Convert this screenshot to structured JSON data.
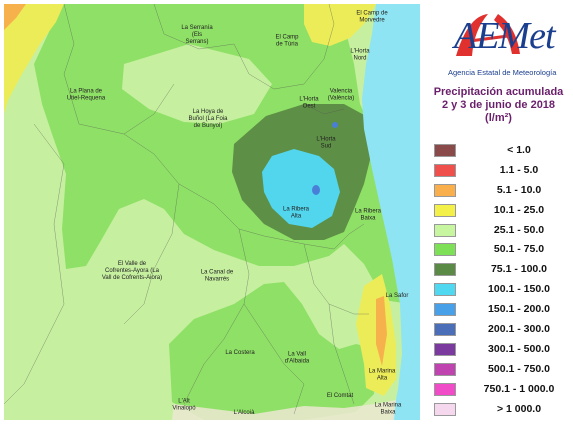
{
  "logo": {
    "brand": "AEMet",
    "agency": "Agencia Estatal de Meteorología"
  },
  "title": {
    "line1": "Precipitación acumulada",
    "line2": "2 y 3 de junio de 2018",
    "unit": "(l/m²)"
  },
  "legend": [
    {
      "label": "< 1.0",
      "color": "#8b4a4a"
    },
    {
      "label": "1.1 - 5.0",
      "color": "#f0504b"
    },
    {
      "label": "5.1 - 10.0",
      "color": "#f9b04c"
    },
    {
      "label": "10.1 - 25.0",
      "color": "#f4f04a"
    },
    {
      "label": "25.1 - 50.0",
      "color": "#c8f5a0"
    },
    {
      "label": "50.1 - 75.0",
      "color": "#7ee056"
    },
    {
      "label": "75.1 - 100.0",
      "color": "#5a8a46"
    },
    {
      "label": "100.1 - 150.0",
      "color": "#4fd8f0"
    },
    {
      "label": "150.1 - 200.0",
      "color": "#47a0e8"
    },
    {
      "label": "200.1 - 300.0",
      "color": "#4a6fb8"
    },
    {
      "label": "300.1 - 500.0",
      "color": "#7b3b9e"
    },
    {
      "label": "500.1 - 750.0",
      "color": "#c044b0"
    },
    {
      "label": "750.1 - 1 000.0",
      "color": "#f04cc8"
    },
    {
      "label": "> 1 000.0",
      "color": "#f5d8ee"
    }
  ],
  "map": {
    "sea_color": "#8ee4f2",
    "regions": [
      {
        "id": "serrania",
        "text": [
          "La Serranía",
          "(Els",
          "Serrans)"
        ]
      },
      {
        "id": "camp-turia",
        "text": [
          "El Camp",
          "de Túria"
        ]
      },
      {
        "id": "camp-morvedre",
        "text": [
          "El Camp de",
          "Morvedre"
        ]
      },
      {
        "id": "horta-nord",
        "text": [
          "L'Horta",
          "Nord"
        ]
      },
      {
        "id": "plana-utiel",
        "text": [
          "La Plana de",
          "Utiel-Requena"
        ]
      },
      {
        "id": "valencia",
        "text": [
          "Valencia",
          "(València)"
        ]
      },
      {
        "id": "horta-oest",
        "text": [
          "L'Horta",
          "Oest"
        ]
      },
      {
        "id": "hoya-bunyol",
        "text": [
          "La Hoya de",
          "Buñol (La Foia",
          "de Bunyol)"
        ]
      },
      {
        "id": "horta-sud",
        "text": [
          "L'Horta",
          "Sud"
        ]
      },
      {
        "id": "ribera-alta",
        "text": [
          "La Ribera",
          "Alta"
        ]
      },
      {
        "id": "ribera-baixa",
        "text": [
          "La Ribera",
          "Baixa"
        ]
      },
      {
        "id": "valle-cofrentes",
        "text": [
          "El Valle de",
          "Cofrentes-Ayora (La",
          "Vall de Cofrents-Aiora)"
        ]
      },
      {
        "id": "canal-navarres",
        "text": [
          "La Canal de",
          "Navarrés"
        ]
      },
      {
        "id": "safor",
        "text": [
          "La Safor"
        ]
      },
      {
        "id": "costera",
        "text": [
          "La Costera"
        ]
      },
      {
        "id": "vall-albaida",
        "text": [
          "La Vall",
          "d'Albaida"
        ]
      },
      {
        "id": "marina-alta",
        "text": [
          "La Marina",
          "Alta"
        ]
      },
      {
        "id": "alt-vinalopo",
        "text": [
          "L'Alt",
          "Vinalopó"
        ]
      },
      {
        "id": "alcoia",
        "text": [
          "L'Alcoià"
        ]
      },
      {
        "id": "comtat",
        "text": [
          "El Comtat"
        ]
      },
      {
        "id": "marina-baixa",
        "text": [
          "La Marina",
          "Baixa"
        ]
      }
    ]
  }
}
